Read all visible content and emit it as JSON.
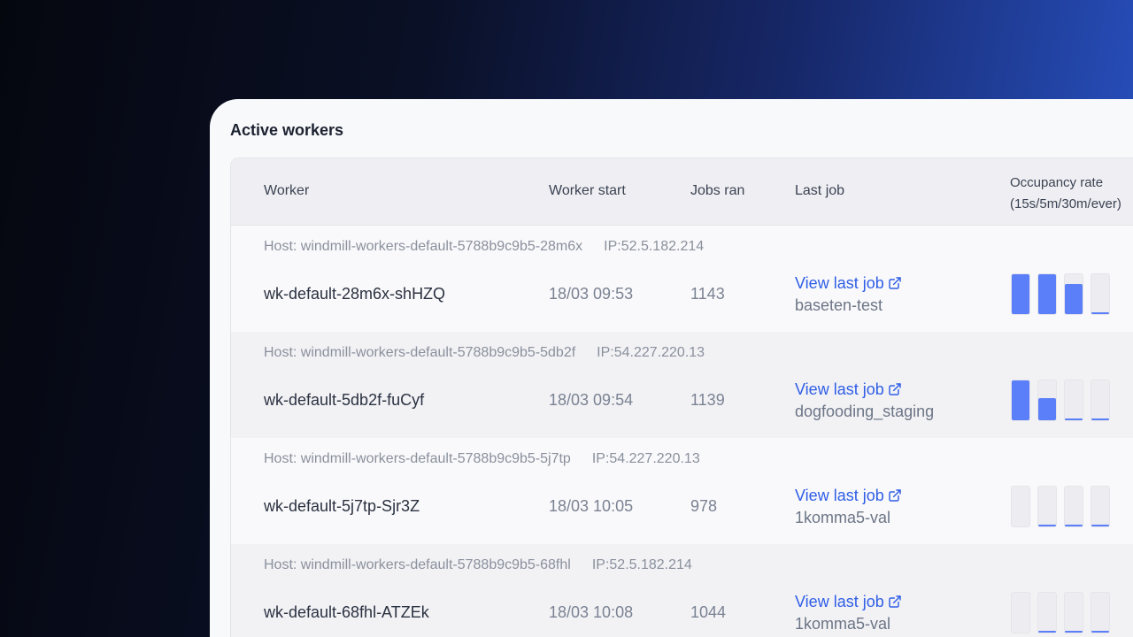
{
  "title": "Active workers",
  "columns": {
    "worker": "Worker",
    "start": "Worker start",
    "jobs": "Jobs ran",
    "last": "Last job",
    "occ_line1": "Occupancy rate",
    "occ_line2": "(15s/5m/30m/ever)"
  },
  "accent": "#5b7ff8",
  "link_color": "#2f5ee6",
  "rows": [
    {
      "host": "Host: windmill-workers-default-5788b9c9b5-28m6x",
      "ip": "IP:52.5.182.214",
      "worker": "wk-default-28m6x-shHZQ",
      "start": "18/03 09:53",
      "jobs": "1143",
      "link": "View last job",
      "last_job": "baseten-test",
      "occupancy": [
        100,
        100,
        75,
        3
      ]
    },
    {
      "host": "Host: windmill-workers-default-5788b9c9b5-5db2f",
      "ip": "IP:54.227.220.13",
      "worker": "wk-default-5db2f-fuCyf",
      "start": "18/03 09:54",
      "jobs": "1139",
      "link": "View last job",
      "last_job": "dogfooding_staging",
      "occupancy": [
        100,
        55,
        3,
        3
      ]
    },
    {
      "host": "Host: windmill-workers-default-5788b9c9b5-5j7tp",
      "ip": "IP:54.227.220.13",
      "worker": "wk-default-5j7tp-Sjr3Z",
      "start": "18/03 10:05",
      "jobs": "978",
      "link": "View last job",
      "last_job": "1komma5-val",
      "occupancy": [
        0,
        3,
        3,
        3
      ]
    },
    {
      "host": "Host: windmill-workers-default-5788b9c9b5-68fhl",
      "ip": "IP:52.5.182.214",
      "worker": "wk-default-68fhl-ATZEk",
      "start": "18/03 10:08",
      "jobs": "1044",
      "link": "View last job",
      "last_job": "1komma5-val",
      "occupancy": [
        0,
        3,
        3,
        3
      ]
    }
  ]
}
